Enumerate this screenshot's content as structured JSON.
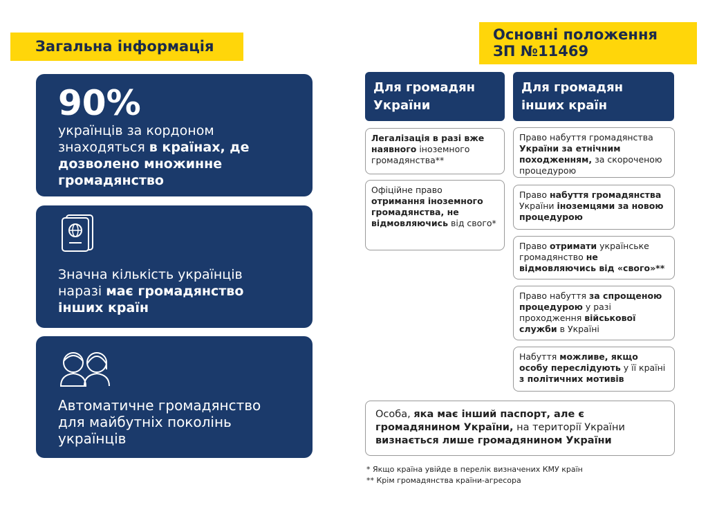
{
  "left": {
    "title": "Загальна інформація",
    "cards": [
      {
        "headline": "90%",
        "text": [
          {
            "text": "українців за кордоном знаходяться "
          },
          {
            "text": "в країнах, де дозволено множинне громадянство",
            "bold": true
          }
        ]
      },
      {
        "text": [
          {
            "text": "Значна кількість українців наразі "
          },
          {
            "text": "має громадянство інших країн",
            "bold": true
          }
        ]
      },
      {
        "text": [
          {
            "text": "Автоматичне громадянство для майбутніх поколінь українців"
          }
        ]
      }
    ]
  },
  "right": {
    "title": [
      "Основні положення",
      "ЗП №11469"
    ],
    "columns": [
      {
        "header": "Для громадян України",
        "items": [
          [
            {
              "text": "Легалізація в разі вже наявного",
              "bold": true
            },
            {
              "text": " іноземного громадянства**"
            }
          ],
          [
            {
              "text": "Офіційне право "
            },
            {
              "text": "отримання іноземного громадянства, не відмовляючись",
              "bold": true
            },
            {
              "text": " від свого*"
            }
          ]
        ]
      },
      {
        "header": "Для громадян інших країн",
        "items": [
          [
            {
              "text": "Право набуття громадянства "
            },
            {
              "text": "України за етнічним походженням,",
              "bold": true
            },
            {
              "text": " за скороченою процедурою"
            }
          ],
          [
            {
              "text": "Право "
            },
            {
              "text": "набуття громадянства",
              "bold": true
            },
            {
              "text": " України "
            },
            {
              "text": "іноземцями за новою процедурою",
              "bold": true
            }
          ],
          [
            {
              "text": "Право "
            },
            {
              "text": "отримати",
              "bold": true
            },
            {
              "text": " українське громадянство "
            },
            {
              "text": "не відмовляючись від «свого»**",
              "bold": true
            }
          ],
          [
            {
              "text": "Право набуття "
            },
            {
              "text": "за спрощеною процедурою",
              "bold": true
            },
            {
              "text": " у разі проходження "
            },
            {
              "text": "військової служби",
              "bold": true
            },
            {
              "text": " в Україні"
            }
          ],
          [
            {
              "text": "Набуття "
            },
            {
              "text": "можливе, якщо особу переслідують",
              "bold": true
            },
            {
              "text": " у її країні "
            },
            {
              "text": "з політичних мотивів",
              "bold": true
            }
          ]
        ]
      }
    ],
    "bottom": [
      {
        "text": "Особа, "
      },
      {
        "text": "яка має інший паспорт, але є громадянином України,",
        "bold": true
      },
      {
        "text": " на території України "
      },
      {
        "text": "визнається лише громадянином України",
        "bold": true
      }
    ],
    "footnotes": [
      "* Якщо країна увійде в перелік визначених КМУ країн",
      "** Крім громадянства країни-агресора"
    ]
  }
}
